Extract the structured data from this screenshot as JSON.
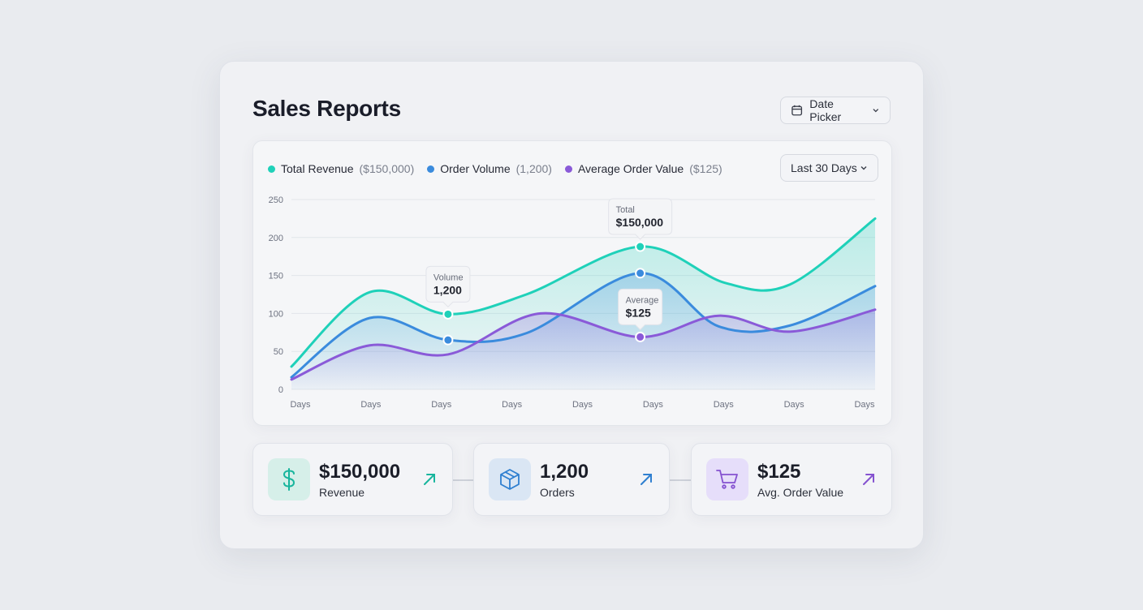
{
  "header": {
    "title": "Sales Reports",
    "date_picker_label": "Date Picker"
  },
  "chart_card": {
    "range_select": "Last 30 Days",
    "legend": [
      {
        "name": "Total Revenue",
        "sub": "($150,000)",
        "color": "#1fd1b9"
      },
      {
        "name": "Order Volume",
        "sub": "(1,200)",
        "color": "#3a8bdd"
      },
      {
        "name": "Average Order Value",
        "sub": "($125)",
        "color": "#8a5ad8"
      }
    ],
    "tooltips": [
      {
        "label": "Volume",
        "value": "1,200",
        "series": 0,
        "x": 2.2
      },
      {
        "label": "Total",
        "value": "$150,000",
        "series": 0,
        "x": 4.9
      },
      {
        "label": "Average",
        "value": "$125",
        "series": 2,
        "x": 4.9
      }
    ]
  },
  "chart_data": {
    "type": "area",
    "title": "",
    "xlabel": "",
    "ylabel": "",
    "categories": [
      "Days",
      "Days",
      "Days",
      "Days",
      "Days",
      "Days",
      "Days",
      "Days",
      "Days"
    ],
    "xlim": [
      0,
      8.2
    ],
    "ylim": [
      0,
      250
    ],
    "yticks": [
      0,
      50,
      100,
      150,
      200,
      250
    ],
    "grid": true,
    "series": [
      {
        "name": "Total Revenue",
        "color": "#1fd1b9",
        "x": [
          0,
          1.1,
          2.2,
          3.3,
          4.9,
          6.1,
          7.0,
          8.2
        ],
        "values": [
          30,
          128,
          99,
          125,
          188,
          140,
          138,
          225
        ]
      },
      {
        "name": "Order Volume",
        "color": "#3a8bdd",
        "x": [
          0,
          1.1,
          2.2,
          3.3,
          4.9,
          6.0,
          7.0,
          8.2
        ],
        "values": [
          16,
          94,
          65,
          74,
          153,
          83,
          84,
          136
        ]
      },
      {
        "name": "Average Order Value",
        "color": "#8a5ad8",
        "x": [
          0,
          1.1,
          2.2,
          3.5,
          4.9,
          6.0,
          7.0,
          8.2
        ],
        "values": [
          13,
          58,
          46,
          100,
          69,
          97,
          76,
          105
        ]
      }
    ]
  },
  "stats": [
    {
      "value": "$150,000",
      "label": "Revenue",
      "icon": "dollar-icon",
      "color": "#18b59d",
      "bg": "#d6efe9"
    },
    {
      "value": "1,200",
      "label": "Orders",
      "icon": "box-icon",
      "color": "#2f7fd0",
      "bg": "#dae6f4"
    },
    {
      "value": "$125",
      "label": "Avg. Order Value",
      "icon": "cart-icon",
      "color": "#8552d0",
      "bg": "#e6defa"
    }
  ]
}
